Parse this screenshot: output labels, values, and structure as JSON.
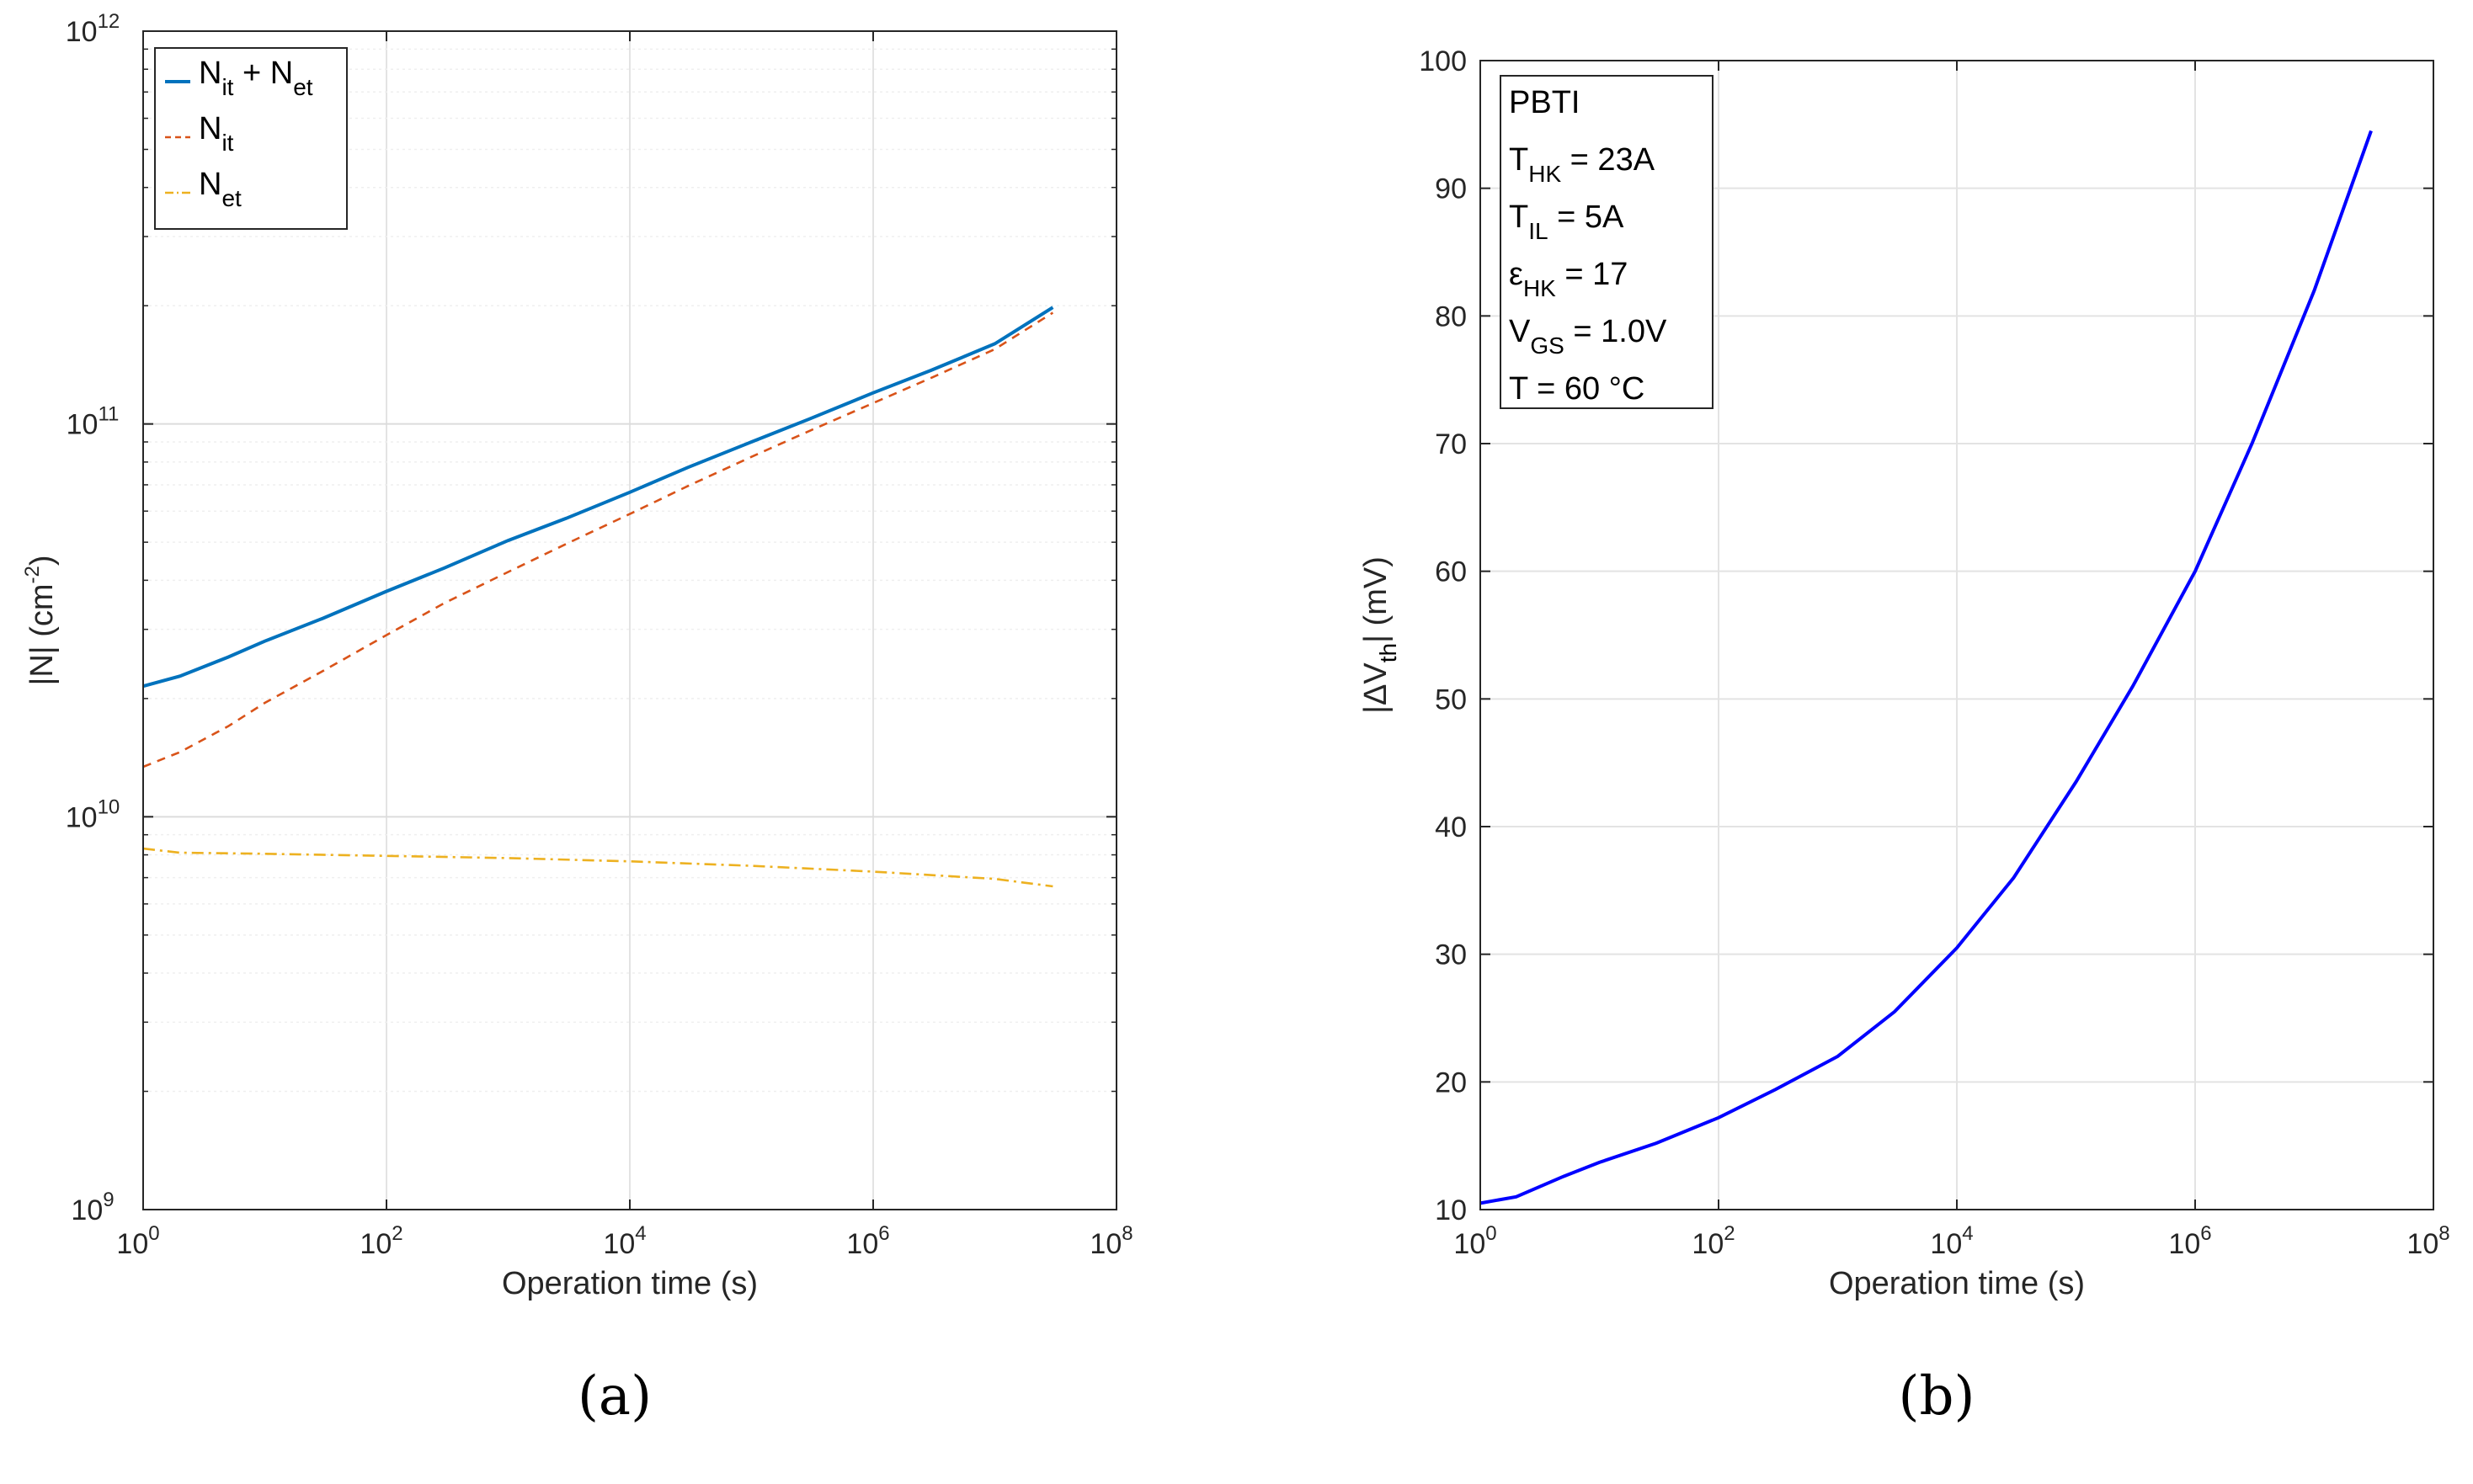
{
  "figure": {
    "captions": [
      "(a)",
      "(b)"
    ]
  },
  "chart_data": [
    {
      "type": "line",
      "panel": "(a)",
      "title": "",
      "xlabel": "Operation time (s)",
      "ylabel_parts": [
        "|N| (cm",
        "-2",
        ")"
      ],
      "xscale": "log",
      "yscale": "log",
      "xlim": [
        1,
        100000000
      ],
      "ylim": [
        1000000000,
        1000000000000
      ],
      "grid": true,
      "legend_position": "top-left",
      "x_ticks": [
        {
          "base": "10",
          "exp": "0"
        },
        {
          "base": "10",
          "exp": "2"
        },
        {
          "base": "10",
          "exp": "4"
        },
        {
          "base": "10",
          "exp": "6"
        },
        {
          "base": "10",
          "exp": "8"
        }
      ],
      "y_ticks": [
        {
          "base": "10",
          "exp": "9"
        },
        {
          "base": "10",
          "exp": "10"
        },
        {
          "base": "10",
          "exp": "11"
        },
        {
          "base": "10",
          "exp": "12"
        }
      ],
      "legend": [
        {
          "main": "N",
          "sub": "it",
          "extra": " + N",
          "sub2": "et"
        },
        {
          "main": "N",
          "sub": "it",
          "extra": "",
          "sub2": ""
        },
        {
          "main": "N",
          "sub": "et",
          "extra": "",
          "sub2": ""
        }
      ],
      "series": [
        {
          "name": "N_it + N_et",
          "color": "#0072bd",
          "dash": "solid",
          "x": [
            1,
            2,
            5,
            10,
            30,
            100,
            300,
            1000,
            3000,
            10000,
            30000,
            100000,
            300000,
            1000000,
            3000000,
            10000000,
            30000000
          ],
          "y": [
            21500000000,
            22800000000,
            25500000000,
            28000000000,
            32000000000,
            37500000000,
            43000000000,
            50500000000,
            57500000000,
            67000000000,
            77500000000,
            90000000000,
            103000000000,
            120000000000,
            137000000000,
            160000000000,
            198000000000
          ]
        },
        {
          "name": "N_it",
          "color": "#d95319",
          "dash": "dashed",
          "x": [
            1,
            2,
            5,
            10,
            30,
            100,
            300,
            1000,
            3000,
            10000,
            30000,
            100000,
            300000,
            1000000,
            3000000,
            10000000,
            30000000
          ],
          "y": [
            13400000000,
            14600000000,
            17000000000,
            19500000000,
            23500000000,
            29000000000,
            35000000000,
            42000000000,
            49500000000,
            59000000000,
            69500000000,
            82500000000,
            96000000000,
            113000000000,
            131000000000,
            155000000000,
            192000000000
          ]
        },
        {
          "name": "N_et",
          "color": "#edb120",
          "dash": "dashdot",
          "x": [
            1,
            2,
            10,
            100,
            1000,
            10000,
            100000,
            1000000,
            10000000,
            30000000
          ],
          "y": [
            8300000000,
            8100000000,
            8050000000,
            7950000000,
            7850000000,
            7700000000,
            7500000000,
            7250000000,
            6950000000,
            6650000000
          ]
        }
      ]
    },
    {
      "type": "line",
      "panel": "(b)",
      "title": "",
      "xlabel": "Operation time (s)",
      "ylabel_parts": [
        "|ΔV",
        "th",
        "| (mV)"
      ],
      "xscale": "log",
      "yscale": "linear",
      "xlim": [
        1,
        100000000
      ],
      "ylim": [
        10,
        100
      ],
      "grid": true,
      "x_ticks": [
        {
          "base": "10",
          "exp": "0"
        },
        {
          "base": "10",
          "exp": "2"
        },
        {
          "base": "10",
          "exp": "4"
        },
        {
          "base": "10",
          "exp": "6"
        },
        {
          "base": "10",
          "exp": "8"
        }
      ],
      "y_ticks": [
        "10",
        "20",
        "30",
        "40",
        "50",
        "60",
        "70",
        "80",
        "90",
        "100"
      ],
      "annotation": [
        {
          "main": "PBTI",
          "sub": "",
          "rest": ""
        },
        {
          "main": "T",
          "sub": "HK",
          "rest": " = 23A"
        },
        {
          "main": "T",
          "sub": "IL",
          "rest": " = 5A"
        },
        {
          "main": "ε",
          "sub": "HK",
          "rest": " = 17"
        },
        {
          "main": "V",
          "sub": "GS",
          "rest": " = 1.0V"
        },
        {
          "main": "T = 60 °C",
          "sub": "",
          "rest": ""
        }
      ],
      "series": [
        {
          "name": "ΔVth",
          "color": "#0000ff",
          "dash": "solid",
          "x": [
            1,
            2,
            5,
            10,
            30,
            100,
            300,
            1000,
            3000,
            10000,
            30000,
            100000,
            300000,
            1000000,
            3000000,
            10000000,
            30000000
          ],
          "y": [
            10.5,
            11.0,
            12.6,
            13.7,
            15.2,
            17.2,
            19.4,
            22.0,
            25.5,
            30.5,
            36.0,
            43.5,
            51.0,
            60.0,
            70.0,
            82.0,
            94.5
          ]
        }
      ]
    }
  ]
}
